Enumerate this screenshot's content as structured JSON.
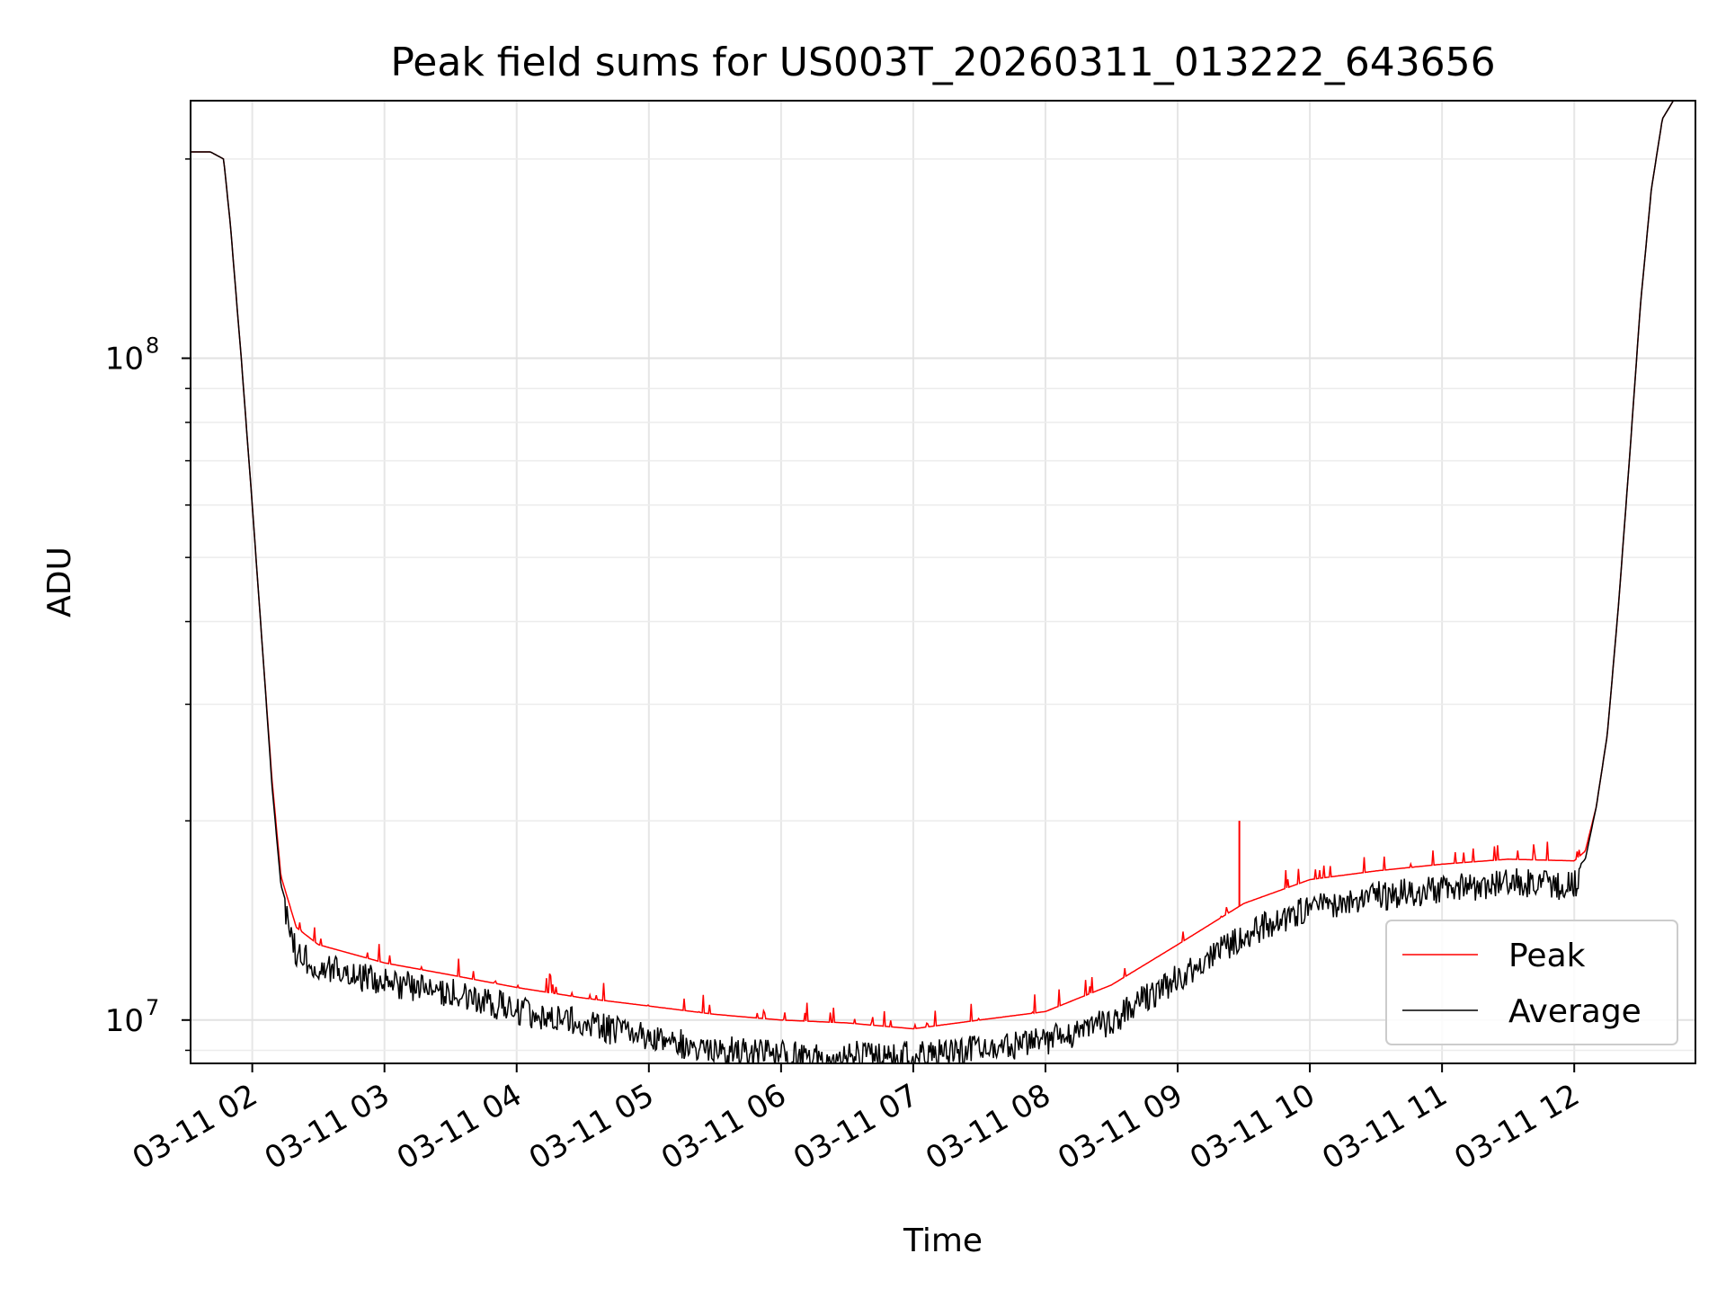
{
  "chart_data": {
    "type": "line",
    "title": "Peak field sums for US003T_20260311_013222_643656",
    "xlabel": "Time",
    "ylabel": "ADU",
    "x_axis": {
      "kind": "time",
      "start": "2026-03-11 01:32",
      "end": "2026-03-11 12:55"
    },
    "y_axis": {
      "scale": "log",
      "ylim": [
        8600000,
        245000000
      ]
    },
    "x_ticks": [
      "03-11 02",
      "03-11 03",
      "03-11 04",
      "03-11 05",
      "03-11 06",
      "03-11 07",
      "03-11 08",
      "03-11 09",
      "03-11 10",
      "03-11 11",
      "03-11 12"
    ],
    "y_ticks": [
      {
        "value": 10000000,
        "base": "10",
        "exp": "7"
      },
      {
        "value": 100000000,
        "base": "10",
        "exp": "8"
      }
    ],
    "grid": true,
    "legend_position": "lower right",
    "series": [
      {
        "name": "Peak",
        "color": "#ff0000",
        "x": [
          "2026-03-11 01:32",
          "2026-03-11 01:41",
          "2026-03-11 01:47",
          "2026-03-11 01:50",
          "2026-03-11 01:55",
          "2026-03-11 02:00",
          "2026-03-11 02:05",
          "2026-03-11 02:09",
          "2026-03-11 02:13",
          "2026-03-11 02:20",
          "2026-03-11 02:30",
          "2026-03-11 03:00",
          "2026-03-11 03:30",
          "2026-03-11 04:00",
          "2026-03-11 04:30",
          "2026-03-11 05:00",
          "2026-03-11 05:30",
          "2026-03-11 06:00",
          "2026-03-11 06:30",
          "2026-03-11 07:00",
          "2026-03-11 07:30",
          "2026-03-11 08:00",
          "2026-03-11 08:30",
          "2026-03-11 09:00",
          "2026-03-11 09:30",
          "2026-03-11 10:00",
          "2026-03-11 10:30",
          "2026-03-11 11:00",
          "2026-03-11 11:30",
          "2026-03-11 12:00",
          "2026-03-11 12:05",
          "2026-03-11 12:10",
          "2026-03-11 12:15",
          "2026-03-11 12:20",
          "2026-03-11 12:25",
          "2026-03-11 12:30",
          "2026-03-11 12:35",
          "2026-03-11 12:40",
          "2026-03-11 12:45"
        ],
        "values": [
          205000000,
          205000000,
          200000000,
          160000000,
          100000000,
          60000000,
          35000000,
          23000000,
          16500000,
          13800000,
          13000000,
          12200000,
          11700000,
          11200000,
          10800000,
          10500000,
          10200000,
          10000000,
          9900000,
          9700000,
          10000000,
          10300000,
          11300000,
          13000000,
          15000000,
          16300000,
          16800000,
          17200000,
          17500000,
          17400000,
          18000000,
          21000000,
          27000000,
          42000000,
          70000000,
          120000000,
          180000000,
          230000000,
          245000000
        ],
        "spikes": [
          {
            "x": "2026-03-11 09:28",
            "value": 20000000
          }
        ]
      },
      {
        "name": "Average",
        "color": "#000000",
        "x": [
          "2026-03-11 01:32",
          "2026-03-11 01:41",
          "2026-03-11 01:47",
          "2026-03-11 01:50",
          "2026-03-11 01:55",
          "2026-03-11 02:00",
          "2026-03-11 02:05",
          "2026-03-11 02:09",
          "2026-03-11 02:13",
          "2026-03-11 02:20",
          "2026-03-11 02:30",
          "2026-03-11 03:00",
          "2026-03-11 03:30",
          "2026-03-11 04:00",
          "2026-03-11 04:30",
          "2026-03-11 05:00",
          "2026-03-11 05:30",
          "2026-03-11 06:00",
          "2026-03-11 06:30",
          "2026-03-11 07:00",
          "2026-03-11 07:30",
          "2026-03-11 08:00",
          "2026-03-11 08:30",
          "2026-03-11 09:00",
          "2026-03-11 09:30",
          "2026-03-11 10:00",
          "2026-03-11 10:30",
          "2026-03-11 11:00",
          "2026-03-11 11:30",
          "2026-03-11 12:00",
          "2026-03-11 12:05",
          "2026-03-11 12:10",
          "2026-03-11 12:15",
          "2026-03-11 12:20",
          "2026-03-11 12:25",
          "2026-03-11 12:30",
          "2026-03-11 12:35",
          "2026-03-11 12:40",
          "2026-03-11 12:45"
        ],
        "values": [
          205000000,
          205000000,
          200000000,
          160000000,
          100000000,
          60000000,
          35000000,
          22500000,
          16000000,
          13300000,
          12700000,
          12000000,
          11600000,
          10900000,
          10400000,
          9900000,
          9500000,
          9300000,
          9300000,
          9300000,
          9500000,
          9800000,
          10500000,
          12200000,
          14200000,
          15500000,
          16200000,
          16600000,
          17000000,
          16800000,
          17500000,
          21000000,
          27000000,
          42000000,
          70000000,
          120000000,
          180000000,
          230000000,
          245000000
        ]
      }
    ]
  }
}
